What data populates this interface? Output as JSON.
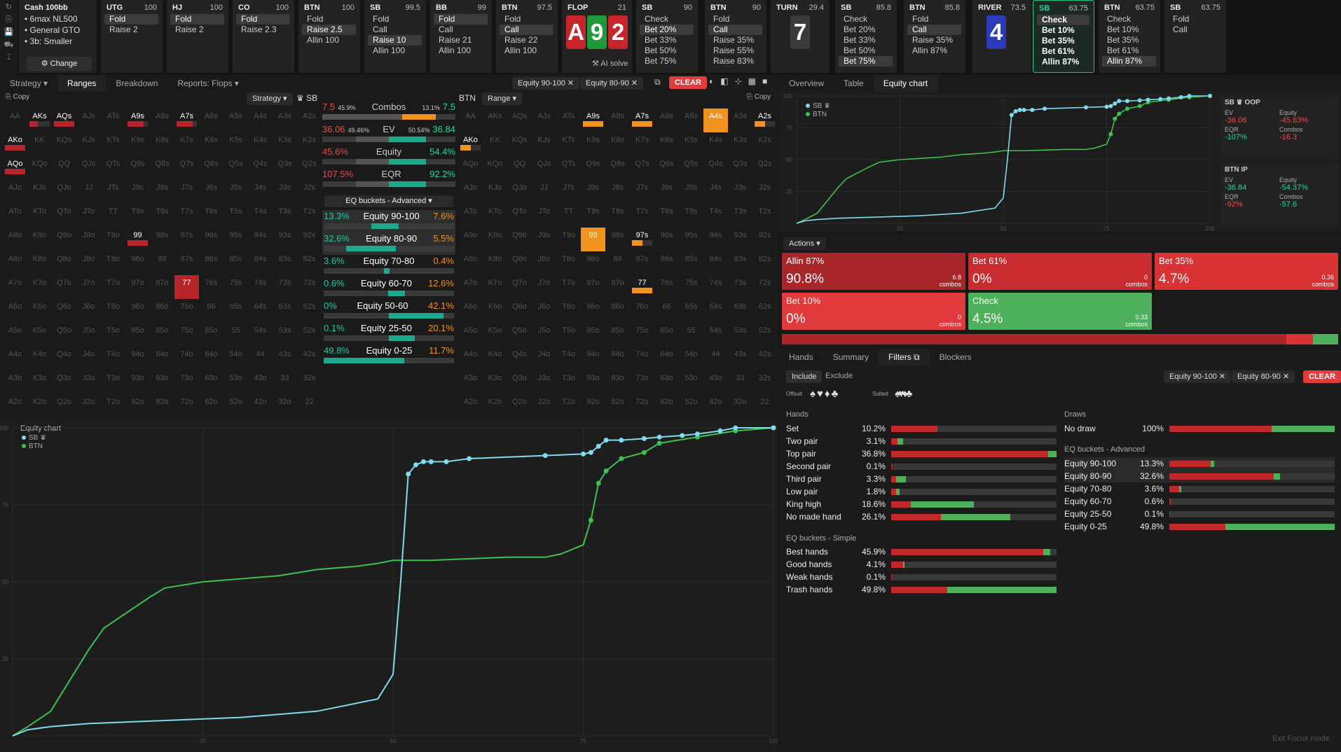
{
  "cash": {
    "title": "Cash 100bb",
    "lines": [
      "• 6max NL500",
      "• General GTO",
      "• 3b: Smaller"
    ],
    "change": "⚙ Change"
  },
  "sidebar_icons": [
    "↻",
    "⎘",
    "💾",
    "⛟",
    "⌶"
  ],
  "columns": [
    {
      "pos": "UTG",
      "stack": "100",
      "actions": [
        "Fold",
        "Raise 2"
      ],
      "sel": 0
    },
    {
      "pos": "HJ",
      "stack": "100",
      "actions": [
        "Fold",
        "Raise 2"
      ],
      "sel": 0
    },
    {
      "pos": "CO",
      "stack": "100",
      "actions": [
        "Fold",
        "Raise 2.3"
      ],
      "sel": 0
    },
    {
      "pos": "BTN",
      "stack": "100",
      "actions": [
        "Fold",
        "Raise 2.5",
        "Allin 100"
      ],
      "sel": 1
    },
    {
      "pos": "SB",
      "stack": "99.5",
      "actions": [
        "Fold",
        "Call",
        "Raise 10",
        "Allin 100"
      ],
      "sel": 2
    },
    {
      "pos": "BB",
      "stack": "99",
      "actions": [
        "Fold",
        "Call",
        "Raise 21",
        "Allin 100"
      ],
      "sel": 0
    },
    {
      "pos": "BTN",
      "stack": "97.5",
      "actions": [
        "Fold",
        "Call",
        "Raise 22",
        "Allin 100"
      ],
      "sel": 1
    },
    {
      "pos": "SB",
      "stack": "90",
      "actions": [
        "Check",
        "Bet 20%",
        "Bet 33%",
        "Bet 50%",
        "Bet 75%"
      ],
      "sel": 1
    },
    {
      "pos": "BTN",
      "stack": "90",
      "actions": [
        "Fold",
        "Call",
        "Raise 35%",
        "Raise 55%",
        "Raise 83%"
      ],
      "sel": 1
    },
    {
      "pos": "SB",
      "stack": "85.8",
      "actions": [
        "Check",
        "Bet 20%",
        "Bet 33%",
        "Bet 50%",
        "Bet 75%"
      ],
      "sel": 4
    },
    {
      "pos": "BTN",
      "stack": "85.8",
      "actions": [
        "Fold",
        "Call",
        "Raise 35%",
        "Allin 87%"
      ],
      "sel": 1
    },
    {
      "pos": "SB",
      "stack": "63.75",
      "actions": [
        "Check",
        "Bet 10%",
        "Bet 35%",
        "Bet 61%",
        "Allin 87%"
      ],
      "sel": 0
    },
    {
      "pos": "BTN",
      "stack": "63.75",
      "actions": [
        "Check",
        "Bet 10%",
        "Bet 35%",
        "Bet 61%",
        "Allin 87%"
      ],
      "sel": 4
    },
    {
      "pos": "SB",
      "stack": "63.75",
      "actions": [
        "Fold",
        "Call"
      ],
      "sel": -1
    }
  ],
  "flop": {
    "label": "FLOP",
    "pot": "21",
    "cards": [
      "A",
      "9",
      "2"
    ],
    "ai": "⚒ AI solve"
  },
  "turn": {
    "label": "TURN",
    "pot": "29.4",
    "card": "7"
  },
  "river": {
    "label": "RIVER",
    "pot": "73.5",
    "card": "4"
  },
  "left_tabs": [
    "Strategy ▾",
    "Ranges",
    "Breakdown",
    "Reports: Flops ▾"
  ],
  "filter_chips": [
    "Equity 90-100 ✕",
    "Equity 80-90 ✕"
  ],
  "clear": "CLEAR",
  "right_tabs": [
    "Overview",
    "Table",
    "Equity chart"
  ],
  "copy": "⎘ Copy",
  "strategy_dd": "Strategy ▾",
  "sb_label": "♛ SB",
  "btn_label": "BTN",
  "range_dd": "Range ▾",
  "hands_rows": [
    [
      "AA",
      "AKs",
      "AQs",
      "AJs",
      "ATs",
      "A9s",
      "A8s",
      "A7s",
      "A6s",
      "A5s",
      "A4s",
      "A3s",
      "A2s"
    ],
    [
      "AKo",
      "KK",
      "KQs",
      "KJs",
      "KTs",
      "K9s",
      "K8s",
      "K7s",
      "K6s",
      "K5s",
      "K4s",
      "K3s",
      "K2s"
    ],
    [
      "AQo",
      "KQo",
      "QQ",
      "QJs",
      "QTs",
      "Q9s",
      "Q8s",
      "Q7s",
      "Q6s",
      "Q5s",
      "Q4s",
      "Q3s",
      "Q2s"
    ],
    [
      "AJo",
      "KJo",
      "QJo",
      "JJ",
      "JTs",
      "J9s",
      "J8s",
      "J7s",
      "J6s",
      "J5s",
      "J4s",
      "J3s",
      "J2s"
    ],
    [
      "ATo",
      "KTo",
      "QTo",
      "JTo",
      "TT",
      "T9s",
      "T8s",
      "T7s",
      "T6s",
      "T5s",
      "T4s",
      "T3s",
      "T2s"
    ],
    [
      "A9o",
      "K9o",
      "Q9o",
      "J9o",
      "T9o",
      "99",
      "98s",
      "97s",
      "96s",
      "95s",
      "94s",
      "93s",
      "92s"
    ],
    [
      "A8o",
      "K8o",
      "Q8o",
      "J8o",
      "T8o",
      "98o",
      "88",
      "87s",
      "86s",
      "85s",
      "84s",
      "83s",
      "82s"
    ],
    [
      "A7o",
      "K7o",
      "Q7o",
      "J7o",
      "T7o",
      "97o",
      "87o",
      "77",
      "76s",
      "75s",
      "74s",
      "73s",
      "72s"
    ],
    [
      "A6o",
      "K6o",
      "Q6o",
      "J6o",
      "T6o",
      "96o",
      "86o",
      "76o",
      "66",
      "65s",
      "64s",
      "63s",
      "62s"
    ],
    [
      "A5o",
      "K5o",
      "Q5o",
      "J5o",
      "T5o",
      "95o",
      "85o",
      "75o",
      "65o",
      "55",
      "54s",
      "53s",
      "52s"
    ],
    [
      "A4o",
      "K4o",
      "Q4o",
      "J4o",
      "T4o",
      "94o",
      "84o",
      "74o",
      "64o",
      "54o",
      "44",
      "43s",
      "42s"
    ],
    [
      "A3o",
      "K3o",
      "Q3o",
      "J3o",
      "T3o",
      "93o",
      "83o",
      "73o",
      "63o",
      "53o",
      "43o",
      "33",
      "32s"
    ],
    [
      "A2o",
      "K2o",
      "Q2o",
      "J2o",
      "T2o",
      "92o",
      "82o",
      "72o",
      "62o",
      "52o",
      "42o",
      "32o",
      "22"
    ]
  ],
  "stats": {
    "combos": {
      "l": "7.5",
      "lp": "45.9%",
      "name": "Combos",
      "rp": "13.1%",
      "r": "7.5"
    },
    "ev": {
      "l": "36.06",
      "lp": "49.46%",
      "name": "EV",
      "rp": "50.54%",
      "r": "36.84"
    },
    "equity": {
      "l": "45.6%",
      "name": "Equity",
      "r": "54.4%"
    },
    "eqr": {
      "l": "107.5%",
      "name": "EQR",
      "r": "92.2%"
    },
    "dd": "EQ buckets - Advanced ▾",
    "buckets": [
      {
        "l": "13.3%",
        "name": "Equity 90-100",
        "r": "7.6%",
        "lf": 0.133,
        "rf": 0.076,
        "sel": true
      },
      {
        "l": "32.6%",
        "name": "Equity 80-90",
        "r": "5.5%",
        "lf": 0.326,
        "rf": 0.055,
        "sel": true
      },
      {
        "l": "3.6%",
        "name": "Equity 70-80",
        "r": "0.4%",
        "lf": 0.036,
        "rf": 0.004,
        "sel": false
      },
      {
        "l": "0.6%",
        "name": "Equity 60-70",
        "r": "12.6%",
        "lf": 0.006,
        "rf": 0.126,
        "sel": false
      },
      {
        "l": "0%",
        "name": "Equity 50-60",
        "r": "42.1%",
        "lf": 0,
        "rf": 0.421,
        "sel": false
      },
      {
        "l": "0.1%",
        "name": "Equity 25-50",
        "r": "20.1%",
        "lf": 0.001,
        "rf": 0.201,
        "sel": false
      },
      {
        "l": "49.8%",
        "name": "Equity 0-25",
        "r": "11.7%",
        "lf": 0.498,
        "rf": 0.117,
        "sel": false
      }
    ]
  },
  "equity_chart": {
    "title": "Equity chart",
    "legend": [
      "SB ♛",
      "BTN"
    ],
    "colors": {
      "sb": "#7fdcf0",
      "btn": "#3cc24e"
    },
    "xticks": [
      "25",
      "50",
      "75",
      "100"
    ],
    "yticks": [
      "100",
      "75",
      "50",
      "25"
    ],
    "chart_data": {
      "type": "line",
      "x_range": [
        0,
        100
      ],
      "y_range": [
        0,
        100
      ],
      "series": [
        {
          "name": "SB ♛",
          "x": [
            0,
            2,
            5,
            10,
            20,
            30,
            40,
            48,
            50,
            51,
            52,
            53,
            54,
            55,
            57,
            60,
            70,
            75,
            76,
            77,
            78,
            80,
            83,
            85,
            88,
            90,
            93,
            95,
            100
          ],
          "y": [
            0,
            2,
            3,
            4,
            5,
            6,
            8,
            12,
            20,
            50,
            85,
            88,
            89,
            89,
            89,
            90,
            91,
            91.5,
            92,
            94,
            96,
            96,
            96.5,
            97,
            97.5,
            98,
            99,
            100,
            100
          ]
        },
        {
          "name": "BTN",
          "x": [
            0,
            2,
            5,
            8,
            10,
            12,
            15,
            18,
            20,
            25,
            30,
            35,
            40,
            45,
            48,
            50,
            55,
            60,
            65,
            70,
            72,
            73,
            75,
            76,
            77,
            78,
            80,
            83,
            85,
            90,
            95,
            100
          ],
          "y": [
            0,
            3,
            8,
            20,
            28,
            35,
            40,
            45,
            48,
            50,
            51,
            52,
            54,
            55,
            56,
            57,
            57,
            57.5,
            58,
            58,
            59,
            60,
            62,
            70,
            82,
            86,
            90,
            92,
            95,
            97,
            99,
            100
          ]
        }
      ]
    }
  },
  "sb_info": {
    "title": "SB ♛ OOP",
    "ev": "-36.06",
    "equity": "-45.63%",
    "eqr": "-107%",
    "combos": "-16.3"
  },
  "btn_info": {
    "title": "BTN IP",
    "ev": "-36.84",
    "equity": "-54.37%",
    "eqr": "-92%",
    "combos": "-57.6"
  },
  "info_labels": {
    "ev": "EV",
    "equity": "Equity",
    "eqr": "EQR",
    "combos": "Combos"
  },
  "actions_dd": "Actions ▾",
  "actions": [
    {
      "name": "Allin 87%",
      "pct": "90.8%",
      "combos": "6.8",
      "color": "#a8262a"
    },
    {
      "name": "Bet 61%",
      "pct": "0%",
      "combos": "0",
      "color": "#c92c30"
    },
    {
      "name": "Bet 35%",
      "pct": "4.7%",
      "combos": "0.36",
      "color": "#d93336"
    },
    {
      "name": "Bet 10%",
      "pct": "0%",
      "combos": "0",
      "color": "#e23a3c"
    },
    {
      "name": "Check",
      "pct": "4.5%",
      "combos": "0.33",
      "color": "#4eb05c"
    }
  ],
  "combos_label": "combos",
  "bottom_tabs": [
    "Hands",
    "Summary",
    "Filters ⧉",
    "Blockers"
  ],
  "include": "Include",
  "exclude": "Exclude",
  "offsuit": "Offsuit",
  "suited": "Suited",
  "suits": "♠♥♦♣",
  "hands_title": "Hands",
  "hand_filters": [
    {
      "n": "Set",
      "p": "10.2%",
      "r": 0.28,
      "g": 0.0
    },
    {
      "n": "Two pair",
      "p": "3.1%",
      "r": 0.04,
      "g": 0.03
    },
    {
      "n": "Top pair",
      "p": "36.8%",
      "r": 0.95,
      "g": 0.05
    },
    {
      "n": "Second pair",
      "p": "0.1%",
      "r": 0.005,
      "g": 0.0
    },
    {
      "n": "Third pair",
      "p": "3.3%",
      "r": 0.03,
      "g": 0.06
    },
    {
      "n": "Low pair",
      "p": "1.8%",
      "r": 0.03,
      "g": 0.02
    },
    {
      "n": "King high",
      "p": "18.6%",
      "r": 0.12,
      "g": 0.38
    },
    {
      "n": "No made hand",
      "p": "26.1%",
      "r": 0.3,
      "g": 0.42
    }
  ],
  "simple_title": "EQ buckets - Simple",
  "simple": [
    {
      "n": "Best hands",
      "p": "45.9%",
      "r": 0.92,
      "g": 0.04
    },
    {
      "n": "Good hands",
      "p": "4.1%",
      "r": 0.07,
      "g": 0.01
    },
    {
      "n": "Weak hands",
      "p": "0.1%",
      "r": 0.003,
      "g": 0.0
    },
    {
      "n": "Trash hands",
      "p": "49.8%",
      "r": 0.34,
      "g": 0.66
    }
  ],
  "draws_title": "Draws",
  "draws": [
    {
      "n": "No draw",
      "p": "100%",
      "r": 0.62,
      "g": 0.38
    }
  ],
  "adv_title": "EQ buckets - Advanced",
  "adv": [
    {
      "n": "Equity 90-100",
      "p": "13.3%",
      "r": 0.25,
      "g": 0.02,
      "sel": true
    },
    {
      "n": "Equity 80-90",
      "p": "32.6%",
      "r": 0.63,
      "g": 0.04,
      "sel": true
    },
    {
      "n": "Equity 70-80",
      "p": "3.6%",
      "r": 0.06,
      "g": 0.01
    },
    {
      "n": "Equity 60-70",
      "p": "0.6%",
      "r": 0.01,
      "g": 0.0
    },
    {
      "n": "Equity 25-50",
      "p": "0.1%",
      "r": 0.003,
      "g": 0.0
    },
    {
      "n": "Equity 0-25",
      "p": "49.8%",
      "r": 0.34,
      "g": 0.66
    }
  ],
  "exit": "Exit Focus mode"
}
